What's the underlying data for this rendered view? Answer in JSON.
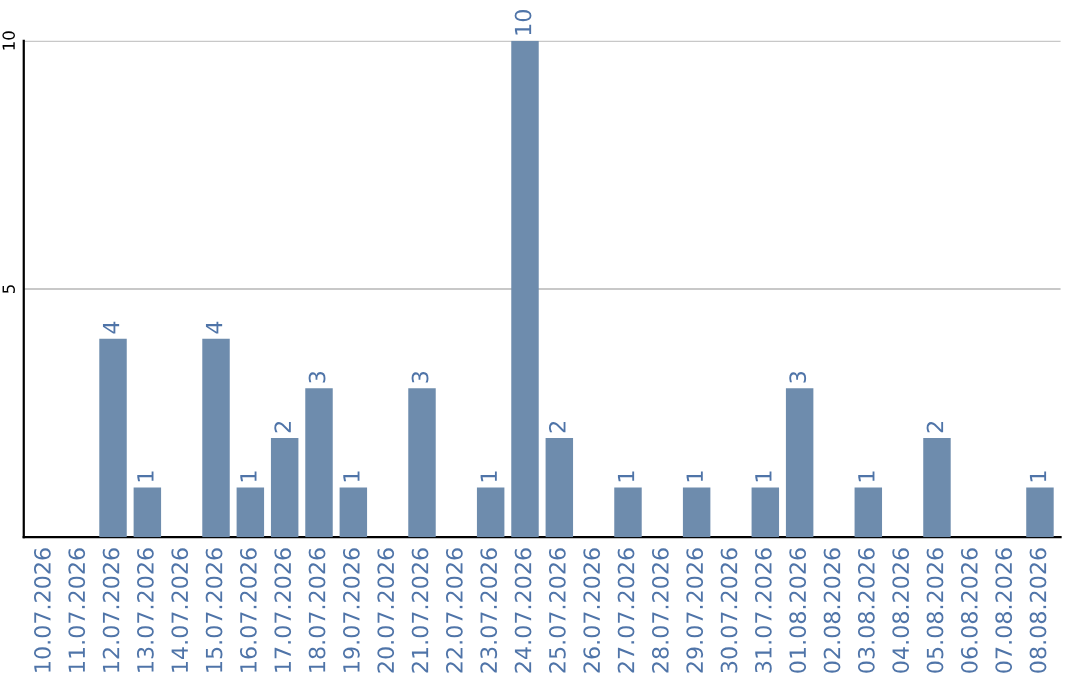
{
  "chart_data": {
    "type": "bar",
    "categories": [
      "10.07.2026",
      "11.07.2026",
      "12.07.2026",
      "13.07.2026",
      "14.07.2026",
      "15.07.2026",
      "16.07.2026",
      "17.07.2026",
      "18.07.2026",
      "19.07.2026",
      "20.07.2026",
      "21.07.2026",
      "22.07.2026",
      "23.07.2026",
      "24.07.2026",
      "25.07.2026",
      "26.07.2026",
      "27.07.2026",
      "28.07.2026",
      "29.07.2026",
      "30.07.2026",
      "31.07.2026",
      "01.08.2026",
      "02.08.2026",
      "03.08.2026",
      "04.08.2026",
      "05.08.2026",
      "06.08.2026",
      "07.08.2026",
      "08.08.2026"
    ],
    "values": [
      0,
      0,
      4,
      1,
      0,
      4,
      1,
      2,
      3,
      1,
      0,
      3,
      0,
      1,
      10,
      2,
      0,
      1,
      0,
      1,
      0,
      1,
      3,
      0,
      1,
      0,
      2,
      0,
      0,
      1
    ],
    "value_labels": [
      null,
      null,
      "4",
      "1",
      null,
      "4",
      "1",
      "2",
      "3",
      "1",
      null,
      "3",
      null,
      "1",
      "10",
      "2",
      null,
      "1",
      null,
      "1",
      null,
      "1",
      "3",
      null,
      "1",
      null,
      "2",
      null,
      null,
      "1"
    ],
    "color": "#6e8cad",
    "ylim": [
      0,
      10
    ],
    "yticks": [
      5,
      10
    ],
    "grid": "y"
  }
}
